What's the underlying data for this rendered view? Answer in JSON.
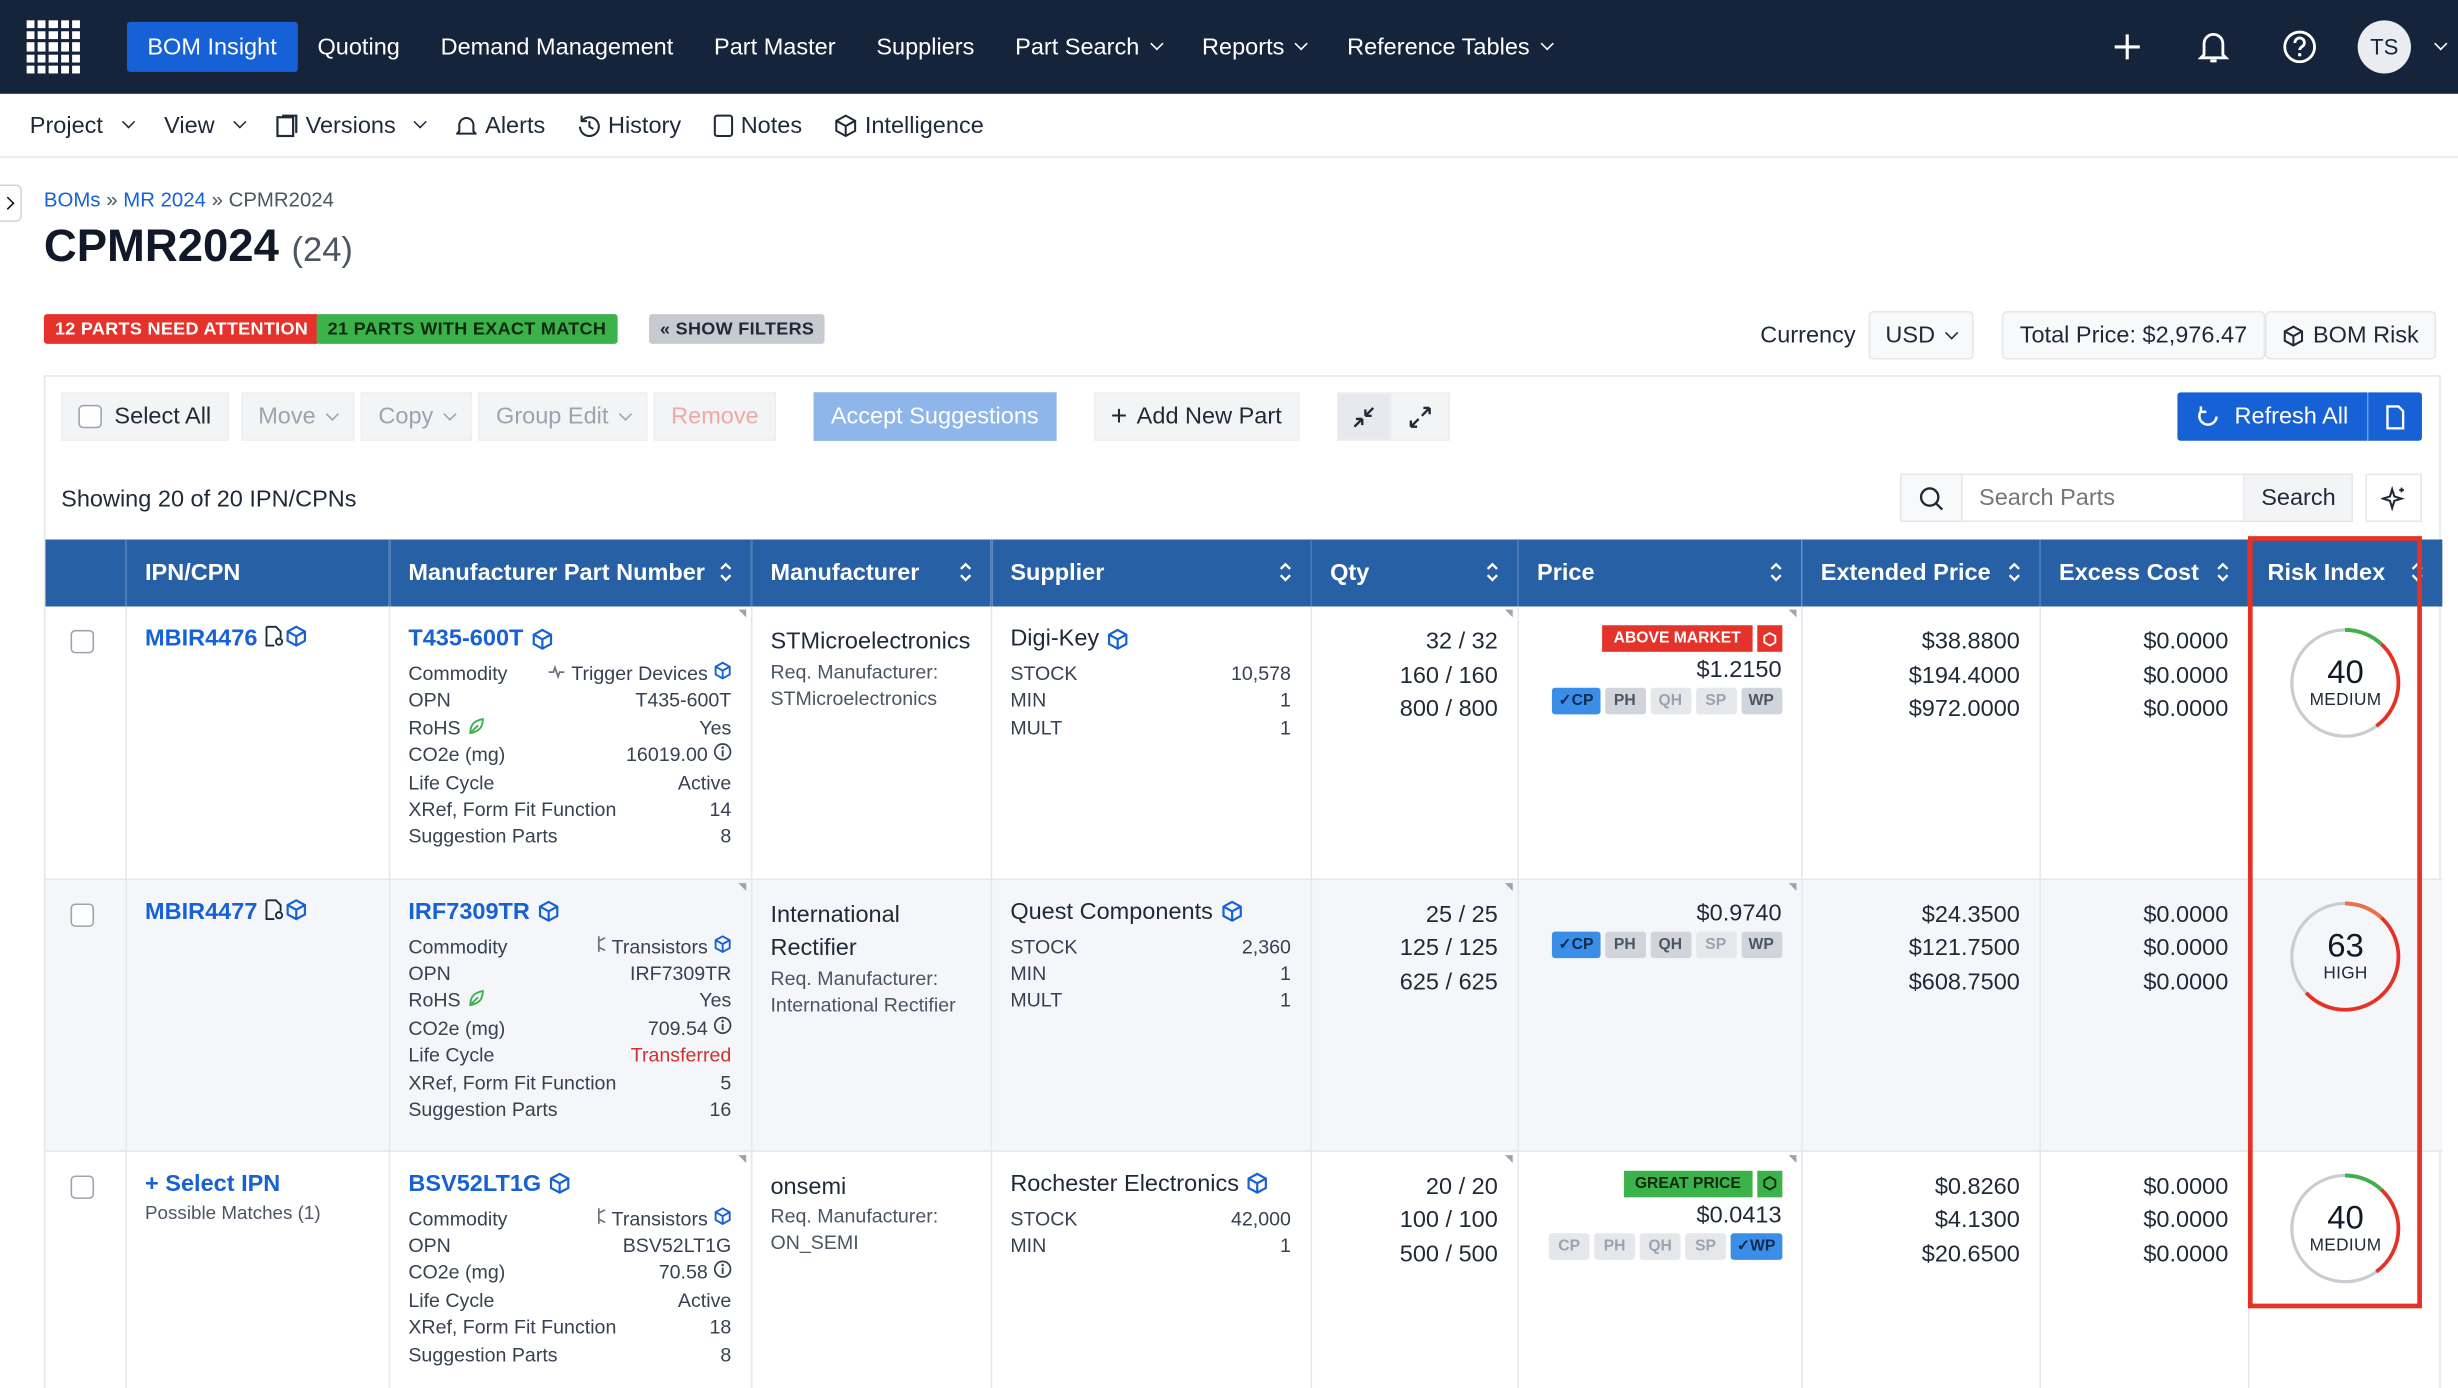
{
  "topnav": {
    "items": [
      {
        "label": "BOM Insight",
        "active": true
      },
      {
        "label": "Quoting"
      },
      {
        "label": "Demand Management"
      },
      {
        "label": "Part Master"
      },
      {
        "label": "Suppliers"
      },
      {
        "label": "Part Search",
        "dropdown": true
      },
      {
        "label": "Reports",
        "dropdown": true
      },
      {
        "label": "Reference Tables",
        "dropdown": true
      }
    ],
    "avatar": "TS",
    "icons": [
      "plus-icon",
      "bell-icon",
      "help-icon"
    ]
  },
  "subnav": {
    "project": "Project",
    "view": "View",
    "versions": "Versions",
    "alerts": "Alerts",
    "history": "History",
    "notes": "Notes",
    "intelligence": "Intelligence"
  },
  "breadcrumb": {
    "a": "BOMs",
    "b": "MR 2024",
    "sep": "»",
    "current": "CPMR2024"
  },
  "page": {
    "title": "CPMR2024",
    "count": "(24)"
  },
  "badges": {
    "attention": "12 PARTS NEED ATTENTION",
    "exact": "21 PARTS WITH EXACT MATCH",
    "filters": "« SHOW FILTERS"
  },
  "colors": {
    "attention": "#e5322b",
    "exact": "#3cb34a",
    "nav": "#15243a",
    "accent": "#1761d6",
    "header": "#2760a4"
  },
  "currency": {
    "label": "Currency",
    "value": "USD"
  },
  "total_price": "Total Price: $2,976.47",
  "bom_risk": "BOM Risk",
  "toolbar": {
    "select_all": "Select All",
    "move": "Move",
    "copy": "Copy",
    "group_edit": "Group Edit",
    "remove": "Remove",
    "accept": "Accept Suggestions",
    "add": "Add New Part",
    "refresh": "Refresh All"
  },
  "showing": "Showing 20 of 20 IPN/CPNs",
  "search": {
    "placeholder": "Search Parts",
    "button": "Search"
  },
  "columns": [
    "IPN/CPN",
    "Manufacturer Part Number",
    "Manufacturer",
    "Supplier",
    "Qty",
    "Price",
    "Extended Price",
    "Excess Cost",
    "Risk Index"
  ],
  "row_labels": {
    "commodity": "Commodity",
    "opn": "OPN",
    "rohs": "RoHS",
    "co2": "CO2e (mg)",
    "life": "Life Cycle",
    "xref": "XRef, Form Fit Function",
    "sugg": "Suggestion Parts",
    "req": "Req. Manufacturer:",
    "stock": "STOCK",
    "min": "MIN",
    "mult": "MULT"
  },
  "rows": [
    {
      "ipn": "MBIR4476",
      "mpn": "T435-600T",
      "commodity": "Trigger Devices",
      "opn": "T435-600T",
      "rohs": "Yes",
      "co2": "16019.00",
      "life": "Active",
      "xref": "14",
      "sugg": "8",
      "mfr": "STMicroelectronics",
      "req_mfr": "STMicroelectronics",
      "supplier": "Digi-Key",
      "stock": "10,578",
      "min": "1",
      "mult": "1",
      "qty": [
        "32 / 32",
        "160 / 160",
        "800 / 800"
      ],
      "flag": "ABOVE MARKET",
      "price": "$1.2150",
      "chips": [
        "CP",
        "PH",
        "QH",
        "SP",
        "WP"
      ],
      "ext": [
        "$38.8800",
        "$194.4000",
        "$972.0000"
      ],
      "excess": [
        "$0.0000",
        "$0.0000",
        "$0.0000"
      ],
      "risk": 40,
      "risk_label": "MEDIUM"
    },
    {
      "ipn": "MBIR4477",
      "mpn": "IRF7309TR",
      "commodity": "Transistors",
      "opn": "IRF7309TR",
      "rohs": "Yes",
      "co2": "709.54",
      "life": "Transferred",
      "xref": "5",
      "sugg": "16",
      "mfr_l1": "International",
      "mfr_l2": "Rectifier",
      "req_mfr": "International Rectifier",
      "supplier": "Quest Components",
      "stock": "2,360",
      "min": "1",
      "mult": "1",
      "qty": [
        "25 / 25",
        "125 / 125",
        "625 / 625"
      ],
      "price": "$0.9740",
      "chips": [
        "CP",
        "PH",
        "QH",
        "SP",
        "WP"
      ],
      "ext": [
        "$24.3500",
        "$121.7500",
        "$608.7500"
      ],
      "excess": [
        "$0.0000",
        "$0.0000",
        "$0.0000"
      ],
      "risk": 63,
      "risk_label": "HIGH"
    },
    {
      "ipn": "Select IPN",
      "possible": "Possible Matches (1)",
      "mpn": "BSV52LT1G",
      "commodity": "Transistors",
      "opn": "BSV52LT1G",
      "co2": "70.58",
      "life": "Active",
      "xref": "18",
      "sugg": "8",
      "mfr": "onsemi",
      "req_mfr": "ON_SEMI",
      "supplier": "Rochester Electronics",
      "stock": "42,000",
      "min": "1",
      "qty": [
        "20 / 20",
        "100 / 100",
        "500 / 500"
      ],
      "flag": "GREAT PRICE",
      "price": "$0.0413",
      "chips": [
        "CP",
        "PH",
        "QH",
        "SP",
        "WP"
      ],
      "ext": [
        "$0.8260",
        "$4.1300",
        "$20.6500"
      ],
      "excess": [
        "$0.0000",
        "$0.0000",
        "$0.0000"
      ],
      "risk": 40,
      "risk_label": "MEDIUM"
    }
  ]
}
